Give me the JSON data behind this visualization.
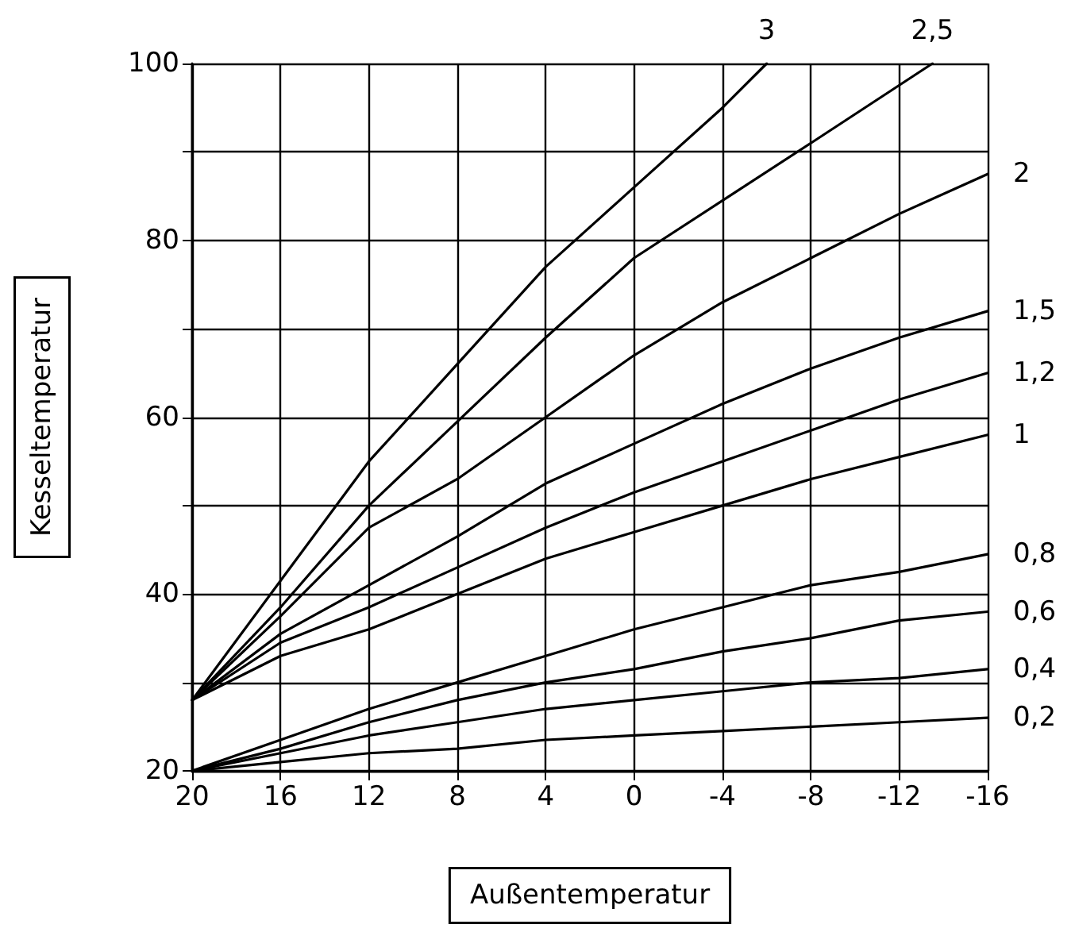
{
  "chart_data": {
    "type": "line",
    "xlabel": "Außentemperatur",
    "ylabel": "Kesseltemperatur",
    "x": [
      20,
      16,
      12,
      8,
      4,
      0,
      -4,
      -8,
      -12,
      -16
    ],
    "series": [
      {
        "name": "3",
        "color": "#000000",
        "x": [
          20,
          16,
          12,
          8,
          4,
          0,
          -4,
          -6
        ],
        "values": [
          28,
          41.5,
          55,
          66,
          77,
          86,
          95,
          100
        ]
      },
      {
        "name": "2,5",
        "color": "#000000",
        "x": [
          20,
          16,
          12,
          8,
          4,
          0,
          -4,
          -8,
          -13.5
        ],
        "values": [
          28,
          38.5,
          50,
          59.5,
          69,
          78,
          84.5,
          91,
          100
        ]
      },
      {
        "name": "2",
        "color": "#000000",
        "values": [
          28,
          37.5,
          47.5,
          53,
          60,
          67,
          73,
          78,
          83,
          87.5
        ]
      },
      {
        "name": "1,5",
        "color": "#000000",
        "values": [
          28,
          35.5,
          41,
          46.5,
          52.5,
          57,
          61.5,
          65.5,
          69,
          72
        ]
      },
      {
        "name": "1,2",
        "color": "#000000",
        "values": [
          28,
          34.5,
          38.5,
          43,
          47.5,
          51.5,
          55,
          58.5,
          62,
          65
        ]
      },
      {
        "name": "1",
        "color": "#000000",
        "values": [
          28,
          33,
          36,
          40,
          44,
          47,
          50,
          53,
          55.5,
          58
        ]
      },
      {
        "name": "0,8",
        "color": "#000000",
        "values": [
          20,
          23.5,
          27,
          30,
          33,
          36,
          38.5,
          41,
          42.5,
          44.5
        ]
      },
      {
        "name": "0,6",
        "color": "#000000",
        "values": [
          20,
          22.5,
          25.5,
          28,
          30,
          31.5,
          33.5,
          35,
          37,
          38
        ]
      },
      {
        "name": "0,4",
        "color": "#000000",
        "values": [
          20,
          22,
          24,
          25.5,
          27,
          28,
          29,
          30,
          30.5,
          31.5
        ]
      },
      {
        "name": "0,2",
        "color": "#000000",
        "values": [
          20,
          21,
          22,
          22.5,
          23.5,
          24,
          24.5,
          25,
          25.5,
          26
        ]
      }
    ],
    "xlim": [
      20,
      -16
    ],
    "xticks": [
      20,
      16,
      12,
      8,
      4,
      0,
      -4,
      -8,
      -12,
      -16
    ],
    "ylim": [
      20,
      100
    ],
    "yticks": [
      20,
      {
        "value": 30,
        "label": null
      },
      40,
      {
        "value": 50,
        "label": null
      },
      60,
      {
        "value": 70,
        "label": null
      },
      80,
      {
        "value": 90,
        "label": null
      },
      100
    ],
    "grid": true,
    "legend": false,
    "marker": "none",
    "line_style": "solid"
  }
}
